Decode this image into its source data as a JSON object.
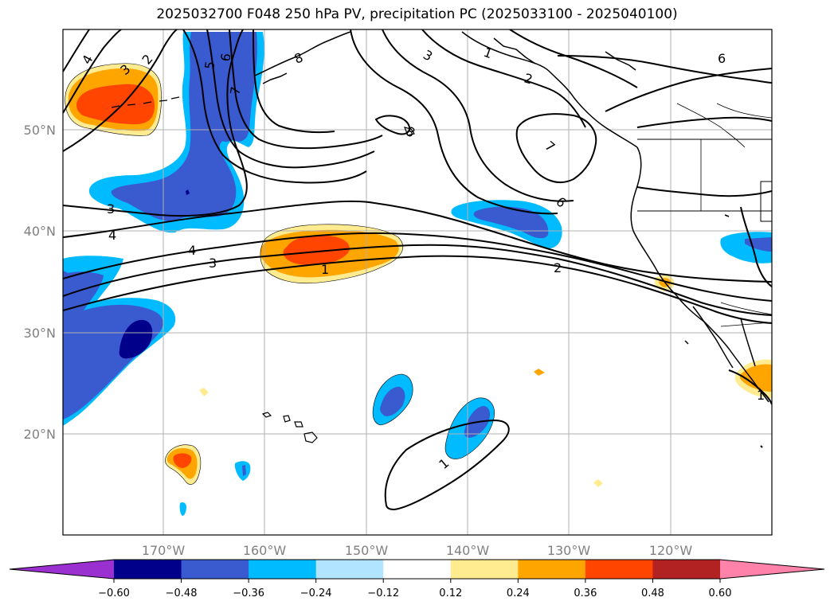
{
  "title": "2025032700 F048 250 hPa PV, precipitation PC (2025033100 - 2025040100)",
  "map": {
    "lat_labels": [
      "50°N",
      "40°N",
      "30°N",
      "20°N"
    ],
    "lon_labels": [
      "170°W",
      "160°W",
      "150°W",
      "140°W",
      "130°W",
      "120°W"
    ],
    "gridline_color": "#b0b0b0",
    "label_color": "#808080"
  },
  "contour_labels": [
    "4",
    "3",
    "2",
    "5",
    "6",
    "7",
    "8",
    "3",
    "1",
    "2",
    "6",
    "7",
    "6",
    "8",
    "3",
    "4",
    "4",
    "3",
    "1",
    "2",
    "1",
    "1"
  ],
  "colorbar": {
    "ticks": [
      "−0.60",
      "−0.48",
      "−0.36",
      "−0.24",
      "−0.12",
      "0.12",
      "0.24",
      "0.36",
      "0.48",
      "0.60"
    ],
    "colors": [
      "#9b30d0",
      "#00008b",
      "#3a5ad0",
      "#00bbff",
      "#b0e4ff",
      "#ffffff",
      "#ffeb90",
      "#ffa500",
      "#ff4500",
      "#b22222",
      "#ff82ab"
    ]
  }
}
